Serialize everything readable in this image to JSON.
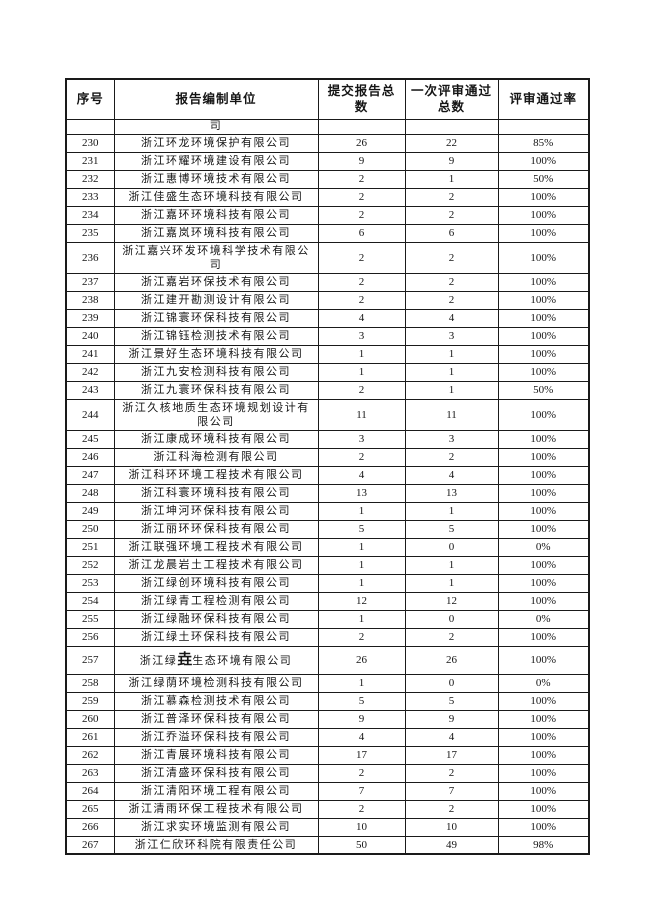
{
  "colors": {
    "page_background": "#ffffff",
    "border": "#1a1a1a",
    "text": "#151515"
  },
  "table": {
    "headers": {
      "col_no": "序号",
      "col_unit": "报告编制单位",
      "col_submitted": "提交报告总数",
      "col_passed_line1": "一次评审通过",
      "col_passed_line2": "总数",
      "col_rate": "评审通过率"
    },
    "continuation_row": {
      "unit_text": "司"
    },
    "rows": [
      {
        "no": "230",
        "unit": "浙江环龙环境保护有限公司",
        "submitted": "26",
        "passed": "22",
        "rate": "85%"
      },
      {
        "no": "231",
        "unit": "浙江环耀环境建设有限公司",
        "submitted": "9",
        "passed": "9",
        "rate": "100%"
      },
      {
        "no": "232",
        "unit": "浙江惠博环境技术有限公司",
        "submitted": "2",
        "passed": "1",
        "rate": "50%"
      },
      {
        "no": "233",
        "unit": "浙江佳盛生态环境科技有限公司",
        "submitted": "2",
        "passed": "2",
        "rate": "100%"
      },
      {
        "no": "234",
        "unit": "浙江嘉环环境科技有限公司",
        "submitted": "2",
        "passed": "2",
        "rate": "100%"
      },
      {
        "no": "235",
        "unit": "浙江嘉岚环境科技有限公司",
        "submitted": "6",
        "passed": "6",
        "rate": "100%"
      },
      {
        "no": "236",
        "unit": "浙江嘉兴环发环境科学技术有限公司",
        "submitted": "2",
        "passed": "2",
        "rate": "100%"
      },
      {
        "no": "237",
        "unit": "浙江嘉岩环保技术有限公司",
        "submitted": "2",
        "passed": "2",
        "rate": "100%"
      },
      {
        "no": "238",
        "unit": "浙江建开勘测设计有限公司",
        "submitted": "2",
        "passed": "2",
        "rate": "100%"
      },
      {
        "no": "239",
        "unit": "浙江锦寰环保科技有限公司",
        "submitted": "4",
        "passed": "4",
        "rate": "100%"
      },
      {
        "no": "240",
        "unit": "浙江锦钰检测技术有限公司",
        "submitted": "3",
        "passed": "3",
        "rate": "100%"
      },
      {
        "no": "241",
        "unit": "浙江景好生态环境科技有限公司",
        "submitted": "1",
        "passed": "1",
        "rate": "100%"
      },
      {
        "no": "242",
        "unit": "浙江九安检测科技有限公司",
        "submitted": "1",
        "passed": "1",
        "rate": "100%"
      },
      {
        "no": "243",
        "unit": "浙江九寰环保科技有限公司",
        "submitted": "2",
        "passed": "1",
        "rate": "50%"
      },
      {
        "no": "244",
        "unit": "浙江久核地质生态环境规划设计有限公司",
        "submitted": "11",
        "passed": "11",
        "rate": "100%"
      },
      {
        "no": "245",
        "unit": "浙江康成环境科技有限公司",
        "submitted": "3",
        "passed": "3",
        "rate": "100%"
      },
      {
        "no": "246",
        "unit": "浙江科海检测有限公司",
        "submitted": "2",
        "passed": "2",
        "rate": "100%"
      },
      {
        "no": "247",
        "unit": "浙江科环环境工程技术有限公司",
        "submitted": "4",
        "passed": "4",
        "rate": "100%"
      },
      {
        "no": "248",
        "unit": "浙江科寰环境科技有限公司",
        "submitted": "13",
        "passed": "13",
        "rate": "100%"
      },
      {
        "no": "249",
        "unit": "浙江坤河环保科技有限公司",
        "submitted": "1",
        "passed": "1",
        "rate": "100%"
      },
      {
        "no": "250",
        "unit": "浙江丽环环保科技有限公司",
        "submitted": "5",
        "passed": "5",
        "rate": "100%"
      },
      {
        "no": "251",
        "unit": "浙江联强环境工程技术有限公司",
        "submitted": "1",
        "passed": "0",
        "rate": "0%"
      },
      {
        "no": "252",
        "unit": "浙江龙晨岩土工程技术有限公司",
        "submitted": "1",
        "passed": "1",
        "rate": "100%"
      },
      {
        "no": "253",
        "unit": "浙江绿创环境科技有限公司",
        "submitted": "1",
        "passed": "1",
        "rate": "100%"
      },
      {
        "no": "254",
        "unit": "浙江绿青工程检测有限公司",
        "submitted": "12",
        "passed": "12",
        "rate": "100%"
      },
      {
        "no": "255",
        "unit": "浙江绿融环保科技有限公司",
        "submitted": "1",
        "passed": "0",
        "rate": "0%"
      },
      {
        "no": "256",
        "unit": "浙江绿土环保科技有限公司",
        "submitted": "2",
        "passed": "2",
        "rate": "100%"
      },
      {
        "no": "257",
        "unit_prefix": "浙江绿",
        "unit_emph": "垚",
        "unit_suffix": "生态环境有限公司",
        "submitted": "26",
        "passed": "26",
        "rate": "100%",
        "tall": true
      },
      {
        "no": "258",
        "unit": "浙江绿荫环境检测科技有限公司",
        "submitted": "1",
        "passed": "0",
        "rate": "0%"
      },
      {
        "no": "259",
        "unit": "浙江慕森检测技术有限公司",
        "submitted": "5",
        "passed": "5",
        "rate": "100%"
      },
      {
        "no": "260",
        "unit": "浙江普泽环保科技有限公司",
        "submitted": "9",
        "passed": "9",
        "rate": "100%"
      },
      {
        "no": "261",
        "unit": "浙江乔溢环保科技有限公司",
        "submitted": "4",
        "passed": "4",
        "rate": "100%"
      },
      {
        "no": "262",
        "unit": "浙江青展环境科技有限公司",
        "submitted": "17",
        "passed": "17",
        "rate": "100%"
      },
      {
        "no": "263",
        "unit": "浙江清盛环保科技有限公司",
        "submitted": "2",
        "passed": "2",
        "rate": "100%"
      },
      {
        "no": "264",
        "unit": "浙江清阳环境工程有限公司",
        "submitted": "7",
        "passed": "7",
        "rate": "100%"
      },
      {
        "no": "265",
        "unit": "浙江清雨环保工程技术有限公司",
        "submitted": "2",
        "passed": "2",
        "rate": "100%"
      },
      {
        "no": "266",
        "unit": "浙江求实环境监测有限公司",
        "submitted": "10",
        "passed": "10",
        "rate": "100%"
      },
      {
        "no": "267",
        "unit": "浙江仁欣环科院有限责任公司",
        "submitted": "50",
        "passed": "49",
        "rate": "98%"
      }
    ]
  }
}
